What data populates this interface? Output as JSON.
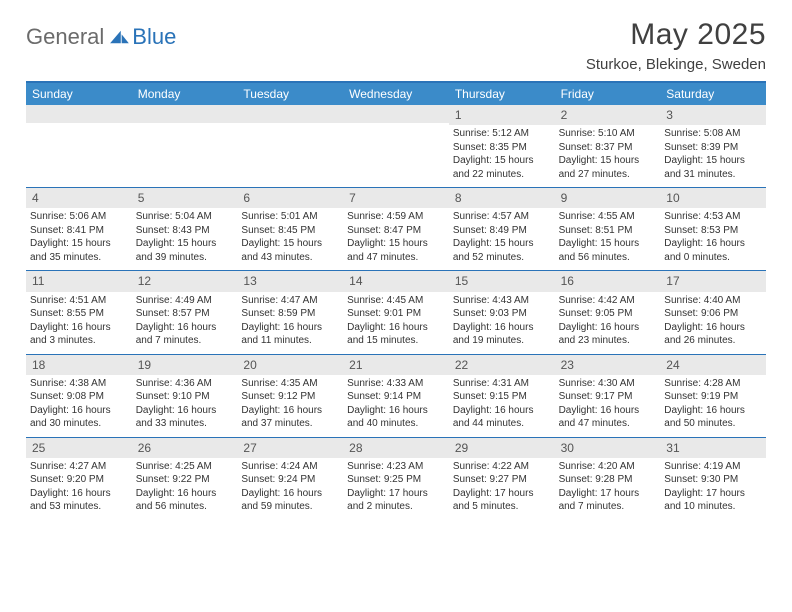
{
  "brand": {
    "general": "General",
    "blue": "Blue"
  },
  "title": "May 2025",
  "location": "Sturkoe, Blekinge, Sweden",
  "colors": {
    "header_bg": "#3b8bc9",
    "border": "#2a73b8",
    "daynum_bg": "#e9e9e9",
    "text": "#333333",
    "title_text": "#404040"
  },
  "dayNames": [
    "Sunday",
    "Monday",
    "Tuesday",
    "Wednesday",
    "Thursday",
    "Friday",
    "Saturday"
  ],
  "weeks": [
    [
      null,
      null,
      null,
      null,
      {
        "n": "1",
        "sr": "5:12 AM",
        "ss": "8:35 PM",
        "dl": "15 hours and 22 minutes."
      },
      {
        "n": "2",
        "sr": "5:10 AM",
        "ss": "8:37 PM",
        "dl": "15 hours and 27 minutes."
      },
      {
        "n": "3",
        "sr": "5:08 AM",
        "ss": "8:39 PM",
        "dl": "15 hours and 31 minutes."
      }
    ],
    [
      {
        "n": "4",
        "sr": "5:06 AM",
        "ss": "8:41 PM",
        "dl": "15 hours and 35 minutes."
      },
      {
        "n": "5",
        "sr": "5:04 AM",
        "ss": "8:43 PM",
        "dl": "15 hours and 39 minutes."
      },
      {
        "n": "6",
        "sr": "5:01 AM",
        "ss": "8:45 PM",
        "dl": "15 hours and 43 minutes."
      },
      {
        "n": "7",
        "sr": "4:59 AM",
        "ss": "8:47 PM",
        "dl": "15 hours and 47 minutes."
      },
      {
        "n": "8",
        "sr": "4:57 AM",
        "ss": "8:49 PM",
        "dl": "15 hours and 52 minutes."
      },
      {
        "n": "9",
        "sr": "4:55 AM",
        "ss": "8:51 PM",
        "dl": "15 hours and 56 minutes."
      },
      {
        "n": "10",
        "sr": "4:53 AM",
        "ss": "8:53 PM",
        "dl": "16 hours and 0 minutes."
      }
    ],
    [
      {
        "n": "11",
        "sr": "4:51 AM",
        "ss": "8:55 PM",
        "dl": "16 hours and 3 minutes."
      },
      {
        "n": "12",
        "sr": "4:49 AM",
        "ss": "8:57 PM",
        "dl": "16 hours and 7 minutes."
      },
      {
        "n": "13",
        "sr": "4:47 AM",
        "ss": "8:59 PM",
        "dl": "16 hours and 11 minutes."
      },
      {
        "n": "14",
        "sr": "4:45 AM",
        "ss": "9:01 PM",
        "dl": "16 hours and 15 minutes."
      },
      {
        "n": "15",
        "sr": "4:43 AM",
        "ss": "9:03 PM",
        "dl": "16 hours and 19 minutes."
      },
      {
        "n": "16",
        "sr": "4:42 AM",
        "ss": "9:05 PM",
        "dl": "16 hours and 23 minutes."
      },
      {
        "n": "17",
        "sr": "4:40 AM",
        "ss": "9:06 PM",
        "dl": "16 hours and 26 minutes."
      }
    ],
    [
      {
        "n": "18",
        "sr": "4:38 AM",
        "ss": "9:08 PM",
        "dl": "16 hours and 30 minutes."
      },
      {
        "n": "19",
        "sr": "4:36 AM",
        "ss": "9:10 PM",
        "dl": "16 hours and 33 minutes."
      },
      {
        "n": "20",
        "sr": "4:35 AM",
        "ss": "9:12 PM",
        "dl": "16 hours and 37 minutes."
      },
      {
        "n": "21",
        "sr": "4:33 AM",
        "ss": "9:14 PM",
        "dl": "16 hours and 40 minutes."
      },
      {
        "n": "22",
        "sr": "4:31 AM",
        "ss": "9:15 PM",
        "dl": "16 hours and 44 minutes."
      },
      {
        "n": "23",
        "sr": "4:30 AM",
        "ss": "9:17 PM",
        "dl": "16 hours and 47 minutes."
      },
      {
        "n": "24",
        "sr": "4:28 AM",
        "ss": "9:19 PM",
        "dl": "16 hours and 50 minutes."
      }
    ],
    [
      {
        "n": "25",
        "sr": "4:27 AM",
        "ss": "9:20 PM",
        "dl": "16 hours and 53 minutes."
      },
      {
        "n": "26",
        "sr": "4:25 AM",
        "ss": "9:22 PM",
        "dl": "16 hours and 56 minutes."
      },
      {
        "n": "27",
        "sr": "4:24 AM",
        "ss": "9:24 PM",
        "dl": "16 hours and 59 minutes."
      },
      {
        "n": "28",
        "sr": "4:23 AM",
        "ss": "9:25 PM",
        "dl": "17 hours and 2 minutes."
      },
      {
        "n": "29",
        "sr": "4:22 AM",
        "ss": "9:27 PM",
        "dl": "17 hours and 5 minutes."
      },
      {
        "n": "30",
        "sr": "4:20 AM",
        "ss": "9:28 PM",
        "dl": "17 hours and 7 minutes."
      },
      {
        "n": "31",
        "sr": "4:19 AM",
        "ss": "9:30 PM",
        "dl": "17 hours and 10 minutes."
      }
    ]
  ],
  "labels": {
    "sunrise": "Sunrise: ",
    "sunset": "Sunset: ",
    "daylight": "Daylight: "
  }
}
